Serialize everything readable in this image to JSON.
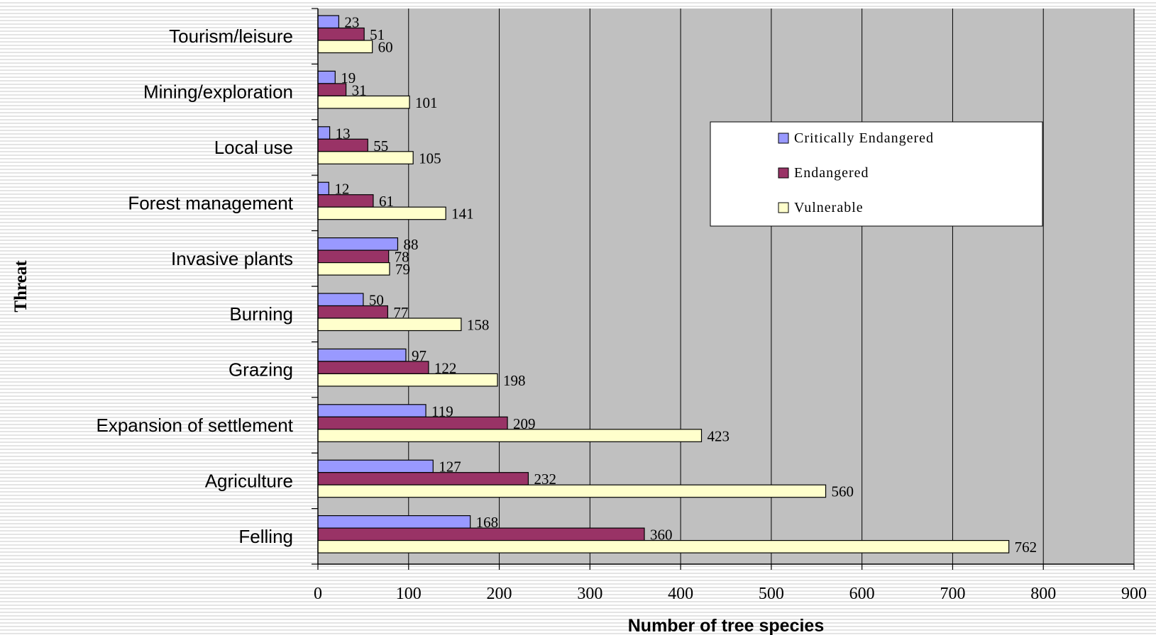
{
  "chart_data": {
    "type": "bar",
    "orientation": "horizontal",
    "categories": [
      "Tourism/leisure",
      "Mining/exploration",
      "Local use",
      "Forest management",
      "Invasive plants",
      "Burning",
      "Grazing",
      "Expansion of settlement",
      "Agriculture",
      "Felling"
    ],
    "series": [
      {
        "name": "Critically Endangered",
        "color": "#9999ff",
        "values": [
          23,
          19,
          13,
          12,
          88,
          50,
          97,
          119,
          127,
          168
        ]
      },
      {
        "name": "Endangered",
        "color": "#993366",
        "values": [
          51,
          31,
          55,
          61,
          78,
          77,
          122,
          209,
          232,
          360
        ]
      },
      {
        "name": "Vulnerable",
        "color": "#ffffcc",
        "values": [
          60,
          101,
          105,
          141,
          79,
          158,
          198,
          423,
          560,
          762
        ]
      }
    ],
    "xlabel": "Number of tree species",
    "ylabel": "Threat",
    "xlim": [
      0,
      900
    ],
    "xticks": [
      0,
      100,
      200,
      300,
      400,
      500,
      600,
      700,
      800,
      900
    ],
    "grid": "vertical",
    "plot_background": "#c0c0c0",
    "legend_position": "upper-right",
    "data_labels": true
  }
}
